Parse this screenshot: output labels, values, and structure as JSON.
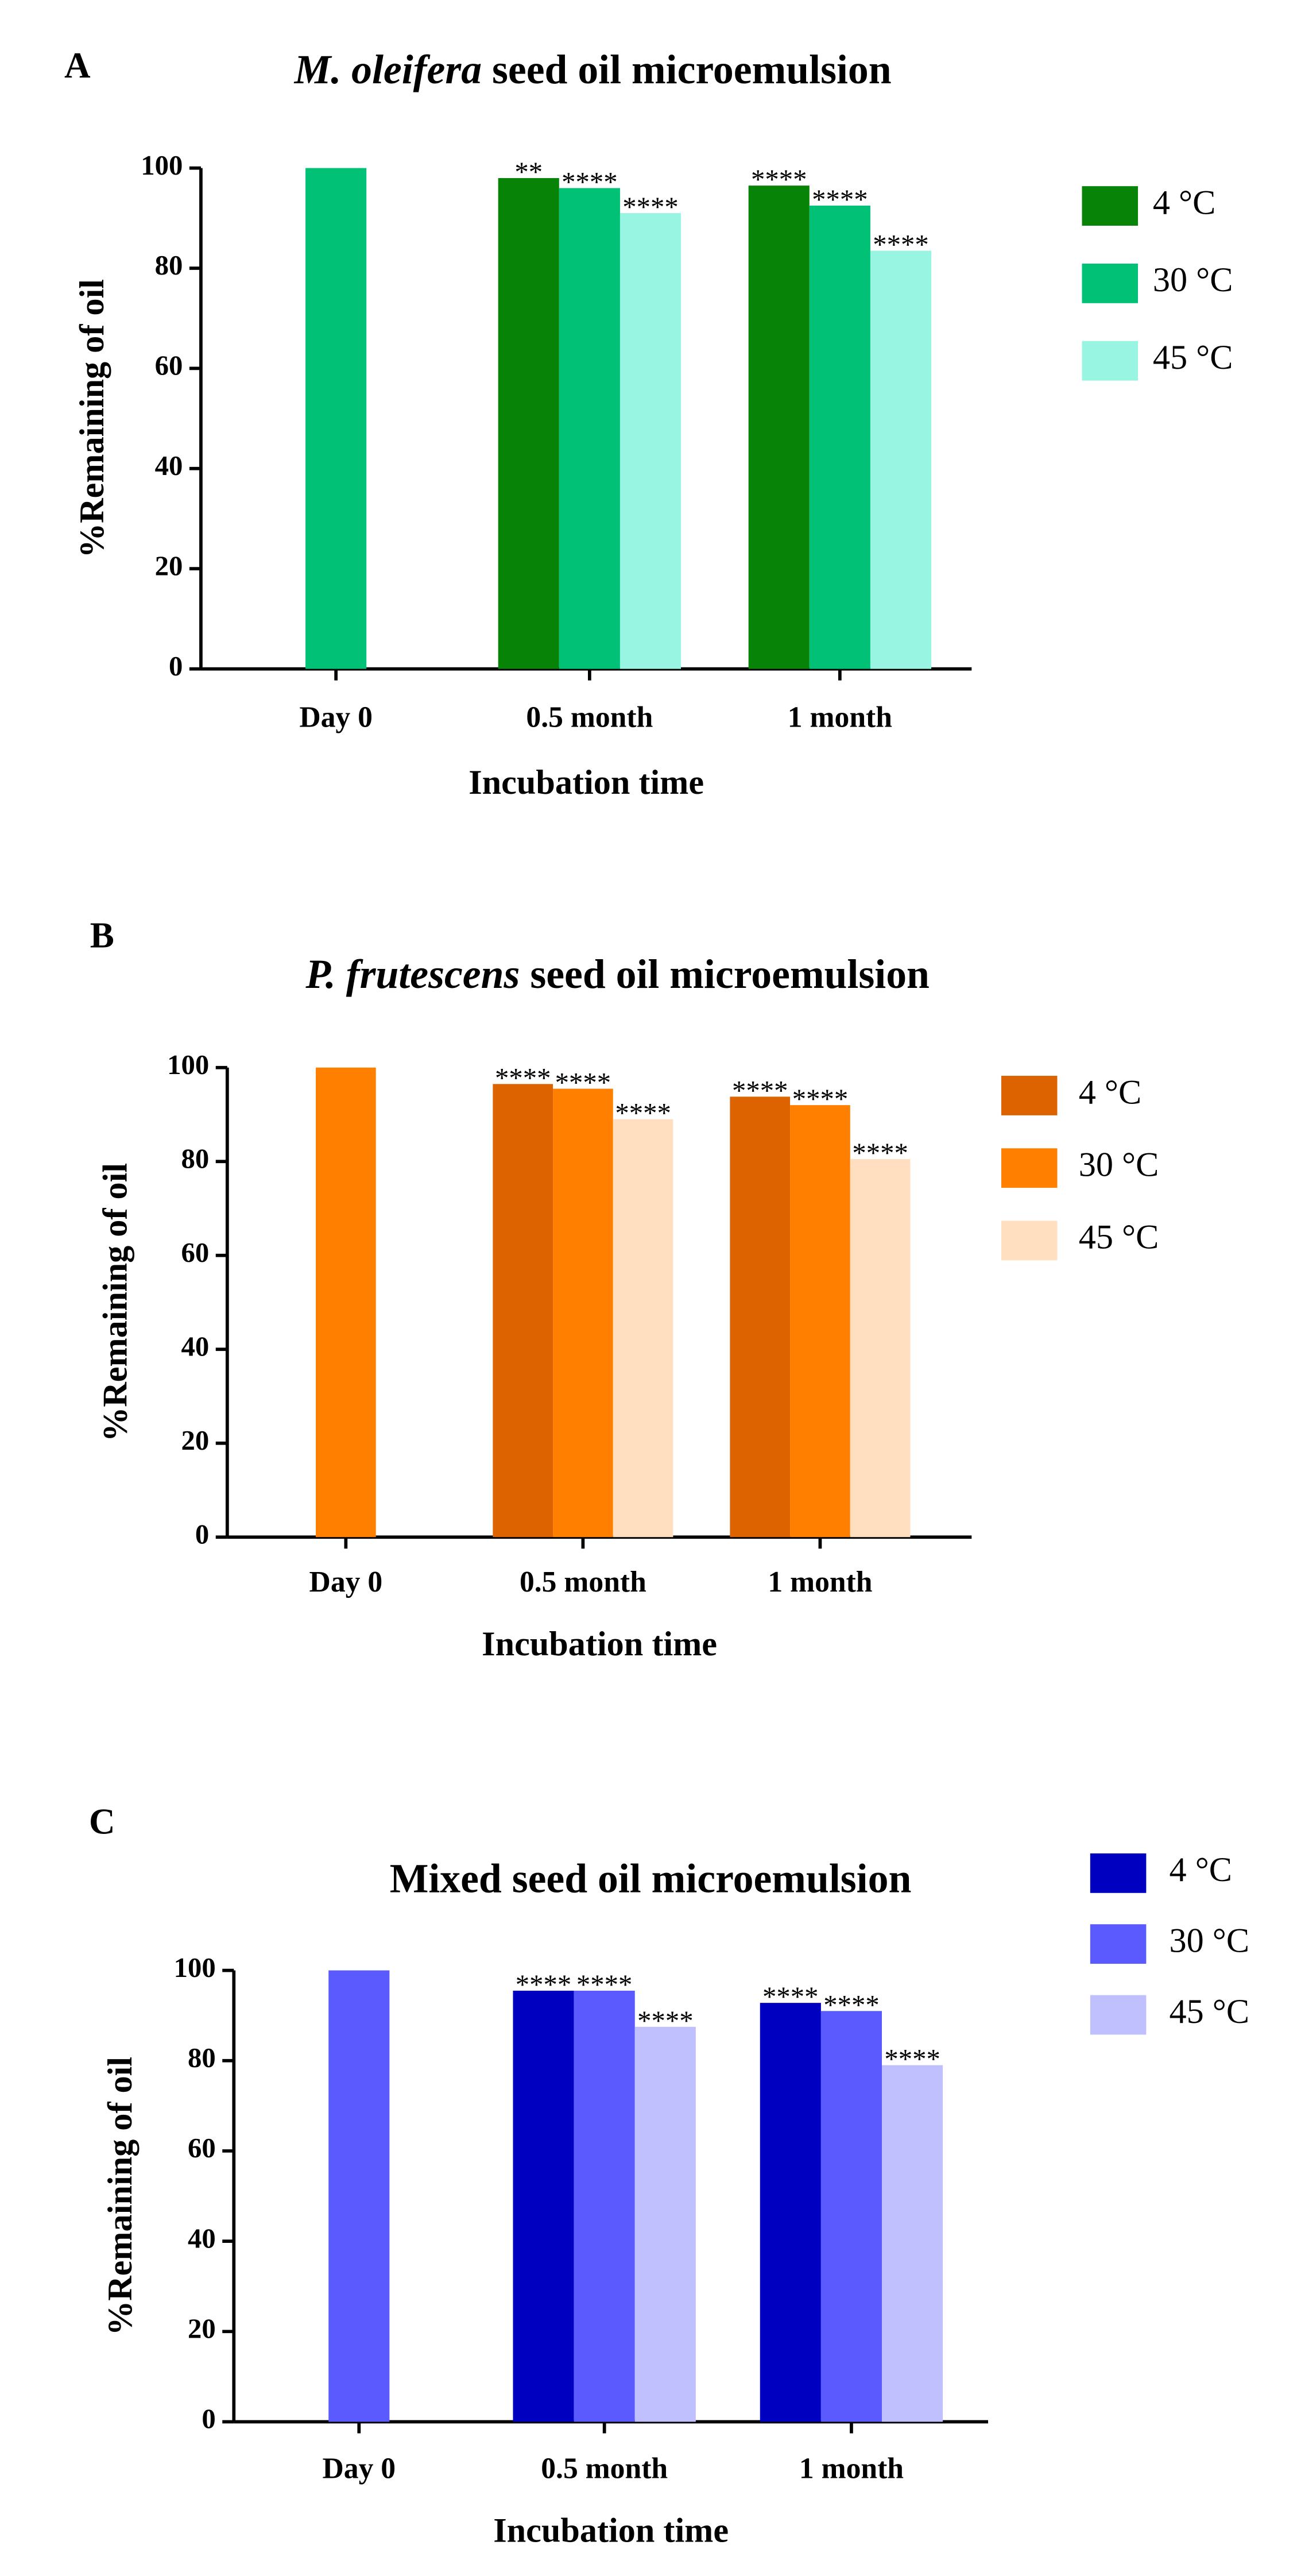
{
  "chart_data": [
    {
      "type": "bar",
      "panel": "A",
      "title_italic": "M. oleifera",
      "title": "seed oil microemulsion",
      "x_label": "Incubation time",
      "y_label": "%Remaining of oil",
      "categories": [
        "Day 0",
        "0.5 month",
        "1 month"
      ],
      "ylim": [
        0,
        100
      ],
      "yticks": [
        0,
        20,
        40,
        60,
        80,
        100
      ],
      "legend": "right",
      "series": [
        {
          "name": "4 °C",
          "color": "#078307",
          "values": [
            null,
            98,
            96.5
          ],
          "annotations": [
            null,
            "**",
            "****"
          ]
        },
        {
          "name": "30 °C",
          "color": "#00c176",
          "values": [
            100,
            96,
            92.5
          ],
          "annotations": [
            null,
            "****",
            "****"
          ]
        },
        {
          "name": "45 °C",
          "color": "#98f5e1",
          "values": [
            null,
            91,
            83.5
          ],
          "annotations": [
            null,
            "****",
            "****"
          ]
        }
      ]
    },
    {
      "type": "bar",
      "panel": "B",
      "title_italic": "P. frutescens",
      "title": "seed oil microemulsion",
      "x_label": "Incubation time",
      "y_label": "%Remaining of oil",
      "categories": [
        "Day 0",
        "0.5 month",
        "1 month"
      ],
      "ylim": [
        0,
        100
      ],
      "yticks": [
        0,
        20,
        40,
        60,
        80,
        100
      ],
      "legend": "right",
      "series": [
        {
          "name": "4 °C",
          "color": "#dd6200",
          "values": [
            null,
            96.5,
            93.8
          ],
          "annotations": [
            null,
            "****",
            "****"
          ]
        },
        {
          "name": "30 °C",
          "color": "#ff8000",
          "values": [
            100,
            95.5,
            92
          ],
          "annotations": [
            null,
            "****",
            "****"
          ]
        },
        {
          "name": "45 °C",
          "color": "#ffdfc0",
          "values": [
            null,
            89,
            80.5
          ],
          "annotations": [
            null,
            "****",
            "****"
          ]
        }
      ]
    },
    {
      "type": "bar",
      "panel": "C",
      "title": "Mixed seed oil microemulsion",
      "x_label": "Incubation time",
      "y_label": "%Remaining of oil",
      "categories": [
        "Day 0",
        "0.5 month",
        "1 month"
      ],
      "ylim": [
        0,
        100
      ],
      "yticks": [
        0,
        20,
        40,
        60,
        80,
        100
      ],
      "legend": "right",
      "series": [
        {
          "name": "4 °C",
          "color": "#0000c0",
          "values": [
            null,
            95.5,
            92.8
          ],
          "annotations": [
            null,
            "****",
            "****"
          ]
        },
        {
          "name": "30 °C",
          "color": "#5a5aff",
          "values": [
            100,
            95.5,
            91
          ],
          "annotations": [
            null,
            "****",
            "****"
          ]
        },
        {
          "name": "45 °C",
          "color": "#c0c0ff",
          "values": [
            null,
            87.5,
            79
          ],
          "annotations": [
            null,
            "****",
            "****"
          ]
        }
      ]
    }
  ]
}
